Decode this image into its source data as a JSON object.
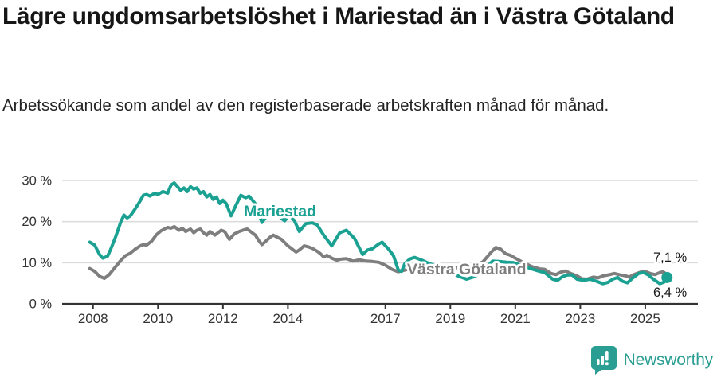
{
  "header": {
    "title": "Lägre ungdomsarbetslöshet i Mariestad än i Västra Götaland",
    "subtitle": "Arbetssökande som andel av den registerbaserade arbetskraften månad för månad."
  },
  "footer": {
    "brand": "Newsworthy"
  },
  "colors": {
    "accent_teal": "#1aa192",
    "secondary_gray": "#7e7e7e",
    "grid": "#dcdcdc",
    "axis": "#333333",
    "title_text": "#161616",
    "annotation_text": "#1a1a1a",
    "brand_teal": "#2b9e93"
  },
  "chart_data": {
    "type": "line",
    "title": "Lägre ungdomsarbetslöshet i Mariestad än i Västra Götaland",
    "subtitle": "Arbetssökande som andel av den registerbaserade arbetskraften månad för månad.",
    "unit": "%",
    "x_unit": "år (månadsdata)",
    "xlim": [
      2007.05,
      2026.62
    ],
    "ylim": [
      0,
      31
    ],
    "grid": "horizontal",
    "legend_position": "inline-labels",
    "y_ticks": [
      {
        "v": 30,
        "label": "30 %"
      },
      {
        "v": 20,
        "label": "20 %"
      },
      {
        "v": 10,
        "label": "10 %"
      },
      {
        "v": 0,
        "label": "0 %"
      }
    ],
    "x_ticks": [
      {
        "v": 2008,
        "label": "2008"
      },
      {
        "v": 2010,
        "label": "2010"
      },
      {
        "v": 2012,
        "label": "2012"
      },
      {
        "v": 2014,
        "label": "2014"
      },
      {
        "v": 2017,
        "label": "2017"
      },
      {
        "v": 2019,
        "label": "2019"
      },
      {
        "v": 2021,
        "label": "2021"
      },
      {
        "v": 2023,
        "label": "2023"
      },
      {
        "v": 2025,
        "label": "2025"
      }
    ],
    "series": [
      {
        "name": "Västra Götaland",
        "color": "#7e7e7e",
        "line_label": {
          "text": "Västra Götaland",
          "x": 511,
          "y": 140
        },
        "end_label": {
          "text": "7,1 %",
          "x": 820,
          "y": 124
        },
        "end_value": 7.1,
        "end_dot": false,
        "points": [
          [
            2007.9,
            8.6
          ],
          [
            2008.05,
            7.9
          ],
          [
            2008.2,
            6.7
          ],
          [
            2008.35,
            6.2
          ],
          [
            2008.5,
            7.1
          ],
          [
            2008.65,
            8.6
          ],
          [
            2008.85,
            10.5
          ],
          [
            2009.0,
            11.7
          ],
          [
            2009.15,
            12.3
          ],
          [
            2009.3,
            13.3
          ],
          [
            2009.45,
            14.1
          ],
          [
            2009.55,
            14.4
          ],
          [
            2009.65,
            14.3
          ],
          [
            2009.8,
            15.2
          ],
          [
            2009.95,
            16.8
          ],
          [
            2010.1,
            17.8
          ],
          [
            2010.2,
            18.2
          ],
          [
            2010.3,
            18.6
          ],
          [
            2010.4,
            18.4
          ],
          [
            2010.5,
            18.8
          ],
          [
            2010.65,
            17.9
          ],
          [
            2010.75,
            18.4
          ],
          [
            2010.85,
            17.6
          ],
          [
            2011.0,
            18.2
          ],
          [
            2011.1,
            17.3
          ],
          [
            2011.2,
            17.9
          ],
          [
            2011.3,
            18.2
          ],
          [
            2011.4,
            17.3
          ],
          [
            2011.5,
            16.7
          ],
          [
            2011.6,
            17.6
          ],
          [
            2011.75,
            16.7
          ],
          [
            2011.85,
            17.3
          ],
          [
            2011.95,
            17.9
          ],
          [
            2012.05,
            17.6
          ],
          [
            2012.2,
            15.7
          ],
          [
            2012.35,
            17.0
          ],
          [
            2012.5,
            17.6
          ],
          [
            2012.65,
            18.0
          ],
          [
            2012.75,
            18.2
          ],
          [
            2012.85,
            17.6
          ],
          [
            2013.0,
            16.7
          ],
          [
            2013.1,
            15.4
          ],
          [
            2013.2,
            14.4
          ],
          [
            2013.3,
            15.1
          ],
          [
            2013.45,
            16.2
          ],
          [
            2013.55,
            16.7
          ],
          [
            2013.65,
            16.3
          ],
          [
            2013.8,
            15.7
          ],
          [
            2013.9,
            14.9
          ],
          [
            2014.0,
            14.1
          ],
          [
            2014.1,
            13.5
          ],
          [
            2014.25,
            12.6
          ],
          [
            2014.35,
            13.1
          ],
          [
            2014.5,
            14.1
          ],
          [
            2014.65,
            13.8
          ],
          [
            2014.75,
            13.5
          ],
          [
            2014.9,
            12.8
          ],
          [
            2015.0,
            12.2
          ],
          [
            2015.1,
            11.4
          ],
          [
            2015.2,
            11.8
          ],
          [
            2015.35,
            11.1
          ],
          [
            2015.5,
            10.6
          ],
          [
            2015.65,
            10.9
          ],
          [
            2015.8,
            11.0
          ],
          [
            2016.0,
            10.4
          ],
          [
            2016.2,
            10.7
          ],
          [
            2016.4,
            10.4
          ],
          [
            2016.6,
            10.3
          ],
          [
            2016.8,
            10.1
          ],
          [
            2017.0,
            9.4
          ],
          [
            2017.2,
            8.4
          ],
          [
            2017.4,
            7.8
          ],
          [
            2017.6,
            8.2
          ],
          [
            2017.9,
            8.8
          ],
          [
            2018.2,
            9.0
          ],
          [
            2018.5,
            8.9
          ],
          [
            2018.8,
            8.7
          ],
          [
            2019.0,
            8.6
          ],
          [
            2019.3,
            8.8
          ],
          [
            2019.6,
            9.1
          ],
          [
            2019.85,
            9.6
          ],
          [
            2020.0,
            10.2
          ],
          [
            2020.25,
            12.5
          ],
          [
            2020.4,
            13.7
          ],
          [
            2020.55,
            13.3
          ],
          [
            2020.7,
            12.2
          ],
          [
            2020.85,
            11.8
          ],
          [
            2021.0,
            11.1
          ],
          [
            2021.25,
            10.0
          ],
          [
            2021.5,
            9.1
          ],
          [
            2021.75,
            8.5
          ],
          [
            2021.9,
            8.4
          ],
          [
            2022.1,
            7.4
          ],
          [
            2022.25,
            7.1
          ],
          [
            2022.4,
            7.7
          ],
          [
            2022.55,
            8.0
          ],
          [
            2022.7,
            7.4
          ],
          [
            2022.9,
            6.8
          ],
          [
            2023.05,
            6.1
          ],
          [
            2023.2,
            6.0
          ],
          [
            2023.4,
            6.5
          ],
          [
            2023.55,
            6.3
          ],
          [
            2023.7,
            6.8
          ],
          [
            2023.9,
            7.1
          ],
          [
            2024.05,
            7.4
          ],
          [
            2024.2,
            7.1
          ],
          [
            2024.4,
            6.8
          ],
          [
            2024.5,
            6.5
          ],
          [
            2024.65,
            7.1
          ],
          [
            2024.85,
            7.7
          ],
          [
            2025.0,
            7.9
          ],
          [
            2025.15,
            7.4
          ],
          [
            2025.3,
            7.1
          ],
          [
            2025.45,
            7.6
          ],
          [
            2025.55,
            7.8
          ],
          [
            2025.67,
            7.1
          ]
        ]
      },
      {
        "name": "Mariestad",
        "color": "#1aa192",
        "line_label": {
          "text": "Mariestad",
          "x": 306,
          "y": 67
        },
        "end_label": {
          "text": "6,4 %",
          "x": 820,
          "y": 168
        },
        "end_value": 6.4,
        "end_dot": true,
        "points": [
          [
            2007.9,
            15.0
          ],
          [
            2008.05,
            14.3
          ],
          [
            2008.2,
            12.0
          ],
          [
            2008.3,
            11.1
          ],
          [
            2008.45,
            11.6
          ],
          [
            2008.55,
            13.4
          ],
          [
            2008.7,
            16.4
          ],
          [
            2008.85,
            19.8
          ],
          [
            2008.95,
            21.6
          ],
          [
            2009.05,
            20.9
          ],
          [
            2009.15,
            21.4
          ],
          [
            2009.3,
            23.1
          ],
          [
            2009.45,
            25.0
          ],
          [
            2009.55,
            26.4
          ],
          [
            2009.65,
            26.6
          ],
          [
            2009.75,
            26.2
          ],
          [
            2009.9,
            26.9
          ],
          [
            2010.0,
            26.6
          ],
          [
            2010.15,
            27.3
          ],
          [
            2010.3,
            26.9
          ],
          [
            2010.4,
            28.9
          ],
          [
            2010.5,
            29.4
          ],
          [
            2010.6,
            28.5
          ],
          [
            2010.7,
            27.6
          ],
          [
            2010.8,
            28.2
          ],
          [
            2010.9,
            27.3
          ],
          [
            2011.0,
            28.5
          ],
          [
            2011.1,
            27.9
          ],
          [
            2011.2,
            28.2
          ],
          [
            2011.3,
            26.9
          ],
          [
            2011.4,
            27.3
          ],
          [
            2011.5,
            26.0
          ],
          [
            2011.6,
            26.6
          ],
          [
            2011.7,
            25.4
          ],
          [
            2011.8,
            26.0
          ],
          [
            2011.9,
            24.4
          ],
          [
            2012.0,
            25.2
          ],
          [
            2012.1,
            24.4
          ],
          [
            2012.25,
            21.4
          ],
          [
            2012.4,
            24.0
          ],
          [
            2012.55,
            26.4
          ],
          [
            2012.7,
            25.8
          ],
          [
            2012.8,
            26.2
          ],
          [
            2012.9,
            25.3
          ],
          [
            2013.0,
            24.3
          ],
          [
            2013.2,
            19.8
          ],
          [
            2013.35,
            21.4
          ],
          [
            2013.5,
            22.2
          ],
          [
            2013.7,
            21.4
          ],
          [
            2013.9,
            20.2
          ],
          [
            2014.05,
            21.6
          ],
          [
            2014.2,
            20.2
          ],
          [
            2014.35,
            17.6
          ],
          [
            2014.55,
            19.5
          ],
          [
            2014.75,
            19.7
          ],
          [
            2014.9,
            19.2
          ],
          [
            2015.1,
            16.7
          ],
          [
            2015.35,
            14.1
          ],
          [
            2015.6,
            17.3
          ],
          [
            2015.8,
            17.9
          ],
          [
            2016.05,
            15.9
          ],
          [
            2016.3,
            12.0
          ],
          [
            2016.45,
            13.1
          ],
          [
            2016.6,
            13.4
          ],
          [
            2016.8,
            14.6
          ],
          [
            2016.9,
            15.0
          ],
          [
            2017.1,
            13.3
          ],
          [
            2017.25,
            11.7
          ],
          [
            2017.4,
            8.2
          ],
          [
            2017.5,
            7.9
          ],
          [
            2017.6,
            9.8
          ],
          [
            2017.75,
            10.9
          ],
          [
            2017.9,
            11.3
          ],
          [
            2018.1,
            10.7
          ],
          [
            2018.35,
            9.8
          ],
          [
            2018.6,
            9.1
          ],
          [
            2018.85,
            8.1
          ],
          [
            2019.1,
            7.2
          ],
          [
            2019.3,
            6.6
          ],
          [
            2019.5,
            6.0
          ],
          [
            2019.7,
            6.5
          ],
          [
            2019.9,
            7.3
          ],
          [
            2020.1,
            8.8
          ],
          [
            2020.3,
            10.4
          ],
          [
            2020.5,
            10.3
          ],
          [
            2020.75,
            10.1
          ],
          [
            2020.95,
            10.0
          ],
          [
            2021.2,
            9.3
          ],
          [
            2021.5,
            8.5
          ],
          [
            2021.75,
            7.9
          ],
          [
            2021.9,
            7.6
          ],
          [
            2022.0,
            7.0
          ],
          [
            2022.15,
            6.0
          ],
          [
            2022.3,
            5.7
          ],
          [
            2022.45,
            6.6
          ],
          [
            2022.6,
            7.0
          ],
          [
            2022.75,
            7.0
          ],
          [
            2022.9,
            6.0
          ],
          [
            2023.1,
            5.7
          ],
          [
            2023.3,
            6.0
          ],
          [
            2023.5,
            5.5
          ],
          [
            2023.7,
            4.9
          ],
          [
            2023.85,
            5.2
          ],
          [
            2024.0,
            6.0
          ],
          [
            2024.15,
            6.4
          ],
          [
            2024.3,
            5.5
          ],
          [
            2024.45,
            5.1
          ],
          [
            2024.6,
            6.2
          ],
          [
            2024.8,
            7.4
          ],
          [
            2024.95,
            7.6
          ],
          [
            2025.1,
            7.0
          ],
          [
            2025.25,
            6.0
          ],
          [
            2025.45,
            4.9
          ],
          [
            2025.58,
            5.3
          ],
          [
            2025.67,
            6.4
          ]
        ]
      }
    ]
  }
}
